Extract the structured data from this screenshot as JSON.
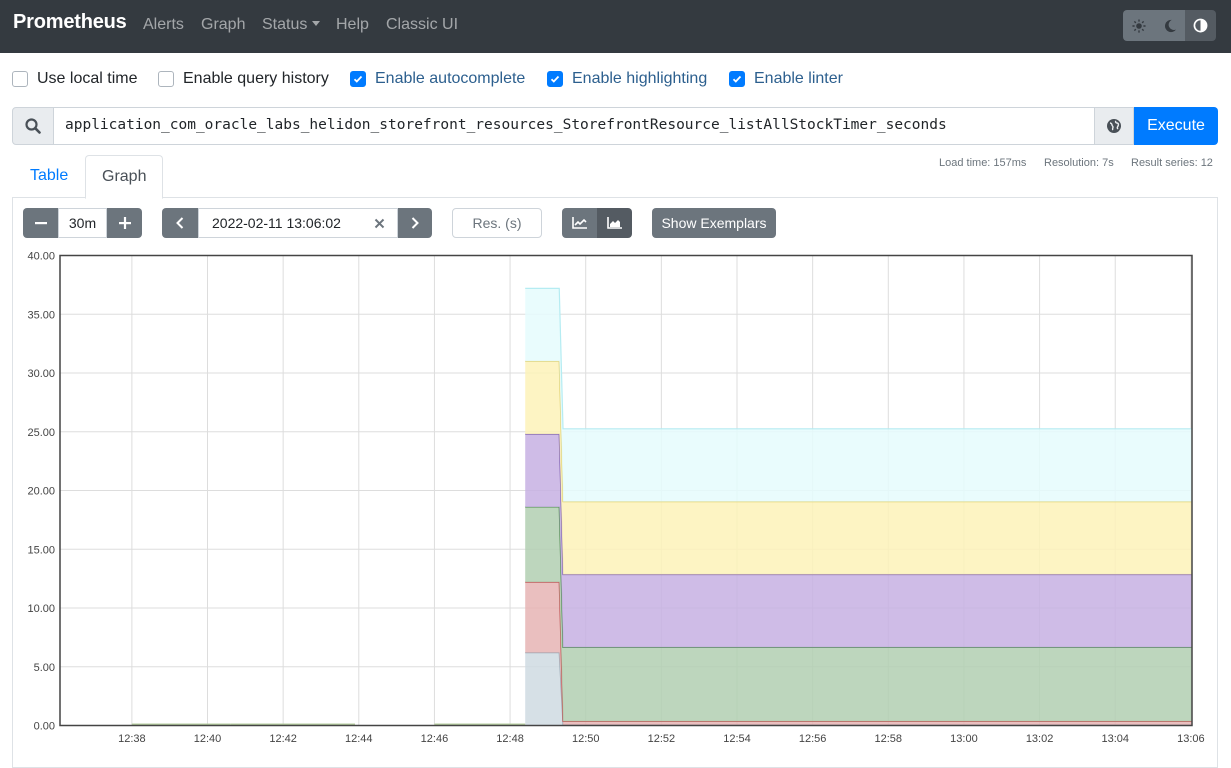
{
  "navbar": {
    "brand": "Prometheus",
    "links": [
      "Alerts",
      "Graph",
      "Status",
      "Help",
      "Classic UI"
    ]
  },
  "options": [
    {
      "label": "Use local time",
      "checked": false
    },
    {
      "label": "Enable query history",
      "checked": false
    },
    {
      "label": "Enable autocomplete",
      "checked": true
    },
    {
      "label": "Enable highlighting",
      "checked": true
    },
    {
      "label": "Enable linter",
      "checked": true
    }
  ],
  "query": {
    "expression": "application_com_oracle_labs_helidon_storefront_resources_StorefrontResource_listAllStockTimer_seconds",
    "execute_label": "Execute"
  },
  "stats": {
    "load_time": "Load time: 157ms",
    "resolution": "Resolution: 7s",
    "result_series": "Result series: 12"
  },
  "tabs": [
    "Table",
    "Graph"
  ],
  "controls": {
    "range": "30m",
    "end_time": "2022-02-11 13:06:02",
    "resolution_placeholder": "Res. (s)",
    "show_exemplars": "Show Exemplars"
  },
  "chart_data": {
    "type": "area",
    "stacked": true,
    "ylim": [
      0,
      40
    ],
    "yticks": [
      "0.00",
      "5.00",
      "10.00",
      "15.00",
      "20.00",
      "25.00",
      "30.00",
      "35.00",
      "40.00"
    ],
    "xticks": [
      "12:38",
      "12:40",
      "12:42",
      "12:44",
      "12:46",
      "12:48",
      "12:50",
      "12:52",
      "12:54",
      "12:56",
      "12:58",
      "13:00",
      "13:02",
      "13:04",
      "13:06"
    ],
    "x_minutes_range": [
      36.1,
      66.03
    ],
    "series": [
      {
        "color": "#cfdbe2",
        "stroke": "#9aaab6",
        "values": [
          [
            48.4,
            6.2
          ],
          [
            49.3,
            6.2
          ],
          [
            49.4,
            0.05
          ],
          [
            66.03,
            0.05
          ]
        ]
      },
      {
        "color": "#e6b4b4",
        "stroke": "#c05050",
        "values": [
          [
            48.4,
            6.0
          ],
          [
            49.3,
            6.0
          ],
          [
            49.4,
            0.3
          ],
          [
            66.03,
            0.3
          ]
        ]
      },
      {
        "color": "#b1cfb2",
        "stroke": "#4e8a4e",
        "values": [
          [
            48.4,
            6.4
          ],
          [
            49.3,
            6.4
          ],
          [
            49.4,
            6.3
          ],
          [
            66.03,
            6.3
          ]
        ]
      },
      {
        "color": "#c7b0e3",
        "stroke": "#7a5bb0",
        "values": [
          [
            48.4,
            6.2
          ],
          [
            49.3,
            6.2
          ],
          [
            49.4,
            6.2
          ],
          [
            66.03,
            6.2
          ]
        ]
      },
      {
        "color": "#fdf2b8",
        "stroke": "#e0cf6a",
        "values": [
          [
            48.4,
            6.2
          ],
          [
            49.3,
            6.2
          ],
          [
            49.4,
            6.2
          ],
          [
            66.03,
            6.2
          ]
        ]
      },
      {
        "color": "#e5fbfd",
        "stroke": "#b5ecf2",
        "values": [
          [
            48.4,
            6.2
          ],
          [
            49.3,
            6.2
          ],
          [
            49.4,
            6.2
          ],
          [
            66.03,
            6.2
          ]
        ]
      }
    ]
  }
}
